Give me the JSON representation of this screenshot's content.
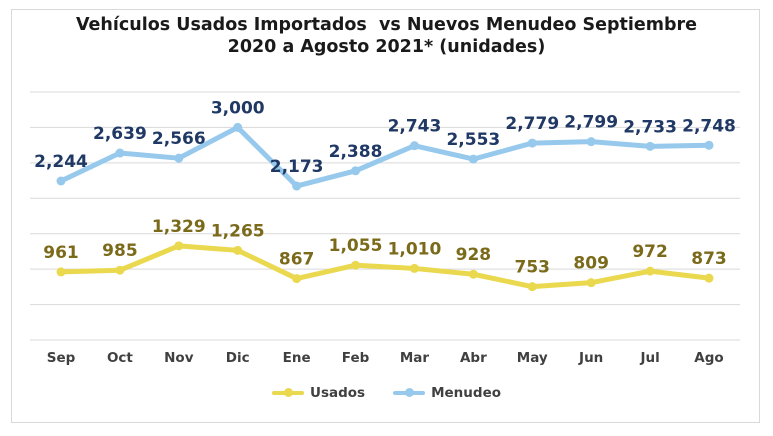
{
  "chart_data": {
    "type": "line",
    "title_line1": "Vehículos Usados Importados  vs Nuevos Menudeo Septiembre",
    "title_line2": "2020 a Agosto 2021* (unidades)",
    "categories": [
      "Sep",
      "Oct",
      "Nov",
      "Dic",
      "Ene",
      "Feb",
      "Mar",
      "Abr",
      "May",
      "Jun",
      "Jul",
      "Ago"
    ],
    "series": [
      {
        "name": "Usados",
        "color": "#ead84f",
        "label_color": "#7a6a1a",
        "values": [
          961,
          985,
          1329,
          1265,
          867,
          1055,
          1010,
          928,
          753,
          809,
          972,
          873
        ],
        "labels": [
          "961",
          "985",
          "1,329",
          "1,265",
          "867",
          "1,055",
          "1,010",
          "928",
          "753",
          "809",
          "972",
          "873"
        ]
      },
      {
        "name": "Menudeo",
        "color": "#96c9ec",
        "label_color": "#1f3864",
        "values": [
          2244,
          2639,
          2566,
          3000,
          2173,
          2388,
          2743,
          2553,
          2779,
          2799,
          2733,
          2748
        ],
        "labels": [
          "2,244",
          "2,639",
          "2,566",
          "3,000",
          "2,173",
          "2,388",
          "2,743",
          "2,553",
          "2,779",
          "2,799",
          "2,733",
          "2,748"
        ]
      }
    ],
    "ylim": [
      0,
      3500
    ],
    "grid": true,
    "legend_position": "bottom"
  }
}
